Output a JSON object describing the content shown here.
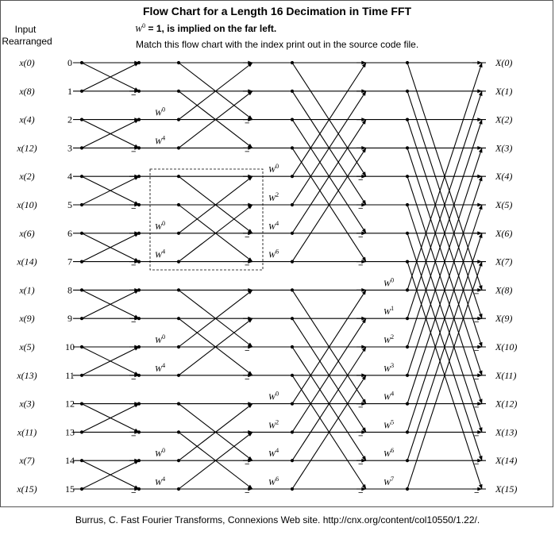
{
  "title": "Flow Chart for a Length 16 Decimation in Time FFT",
  "note_prefix": "W",
  "note_exponent": "0",
  "note_text": " = 1, is implied on the far left.",
  "subtitle": "Match this flow chart with the index print out in the source code file.",
  "header": {
    "line1": "Input",
    "line2": "Rearranged"
  },
  "inputs": [
    "x(0)",
    "x(8)",
    "x(4)",
    "x(12)",
    "x(2)",
    "x(10)",
    "x(6)",
    "x(14)",
    "x(1)",
    "x(9)",
    "x(5)",
    "x(13)",
    "x(3)",
    "x(11)",
    "x(7)",
    "x(15)"
  ],
  "indices": [
    "0",
    "1",
    "2",
    "3",
    "4",
    "5",
    "6",
    "7",
    "8",
    "9",
    "10",
    "11",
    "12",
    "13",
    "14",
    "15"
  ],
  "outputs": [
    "X(0)",
    "X(1)",
    "X(2)",
    "X(3)",
    "X(4)",
    "X(5)",
    "X(6)",
    "X(7)",
    "X(8)",
    "X(9)",
    "X(10)",
    "X(11)",
    "X(12)",
    "X(13)",
    "X(14)",
    "X(15)"
  ],
  "twiddle_symbol": "W",
  "stages": [
    {
      "size": 2,
      "twiddle_exponents": []
    },
    {
      "size": 4,
      "twiddle_exponents": [
        "0",
        "4"
      ]
    },
    {
      "size": 8,
      "twiddle_exponents": [
        "0",
        "2",
        "4",
        "6"
      ]
    },
    {
      "size": 16,
      "twiddle_exponents": [
        "0",
        "1",
        "2",
        "3",
        "4",
        "5",
        "6",
        "7"
      ]
    }
  ],
  "minus_sign": "−",
  "caption": "Burrus, C. Fast Fourier Transforms, Connexions Web site. http://cnx.org/content/col10550/1.22/."
}
